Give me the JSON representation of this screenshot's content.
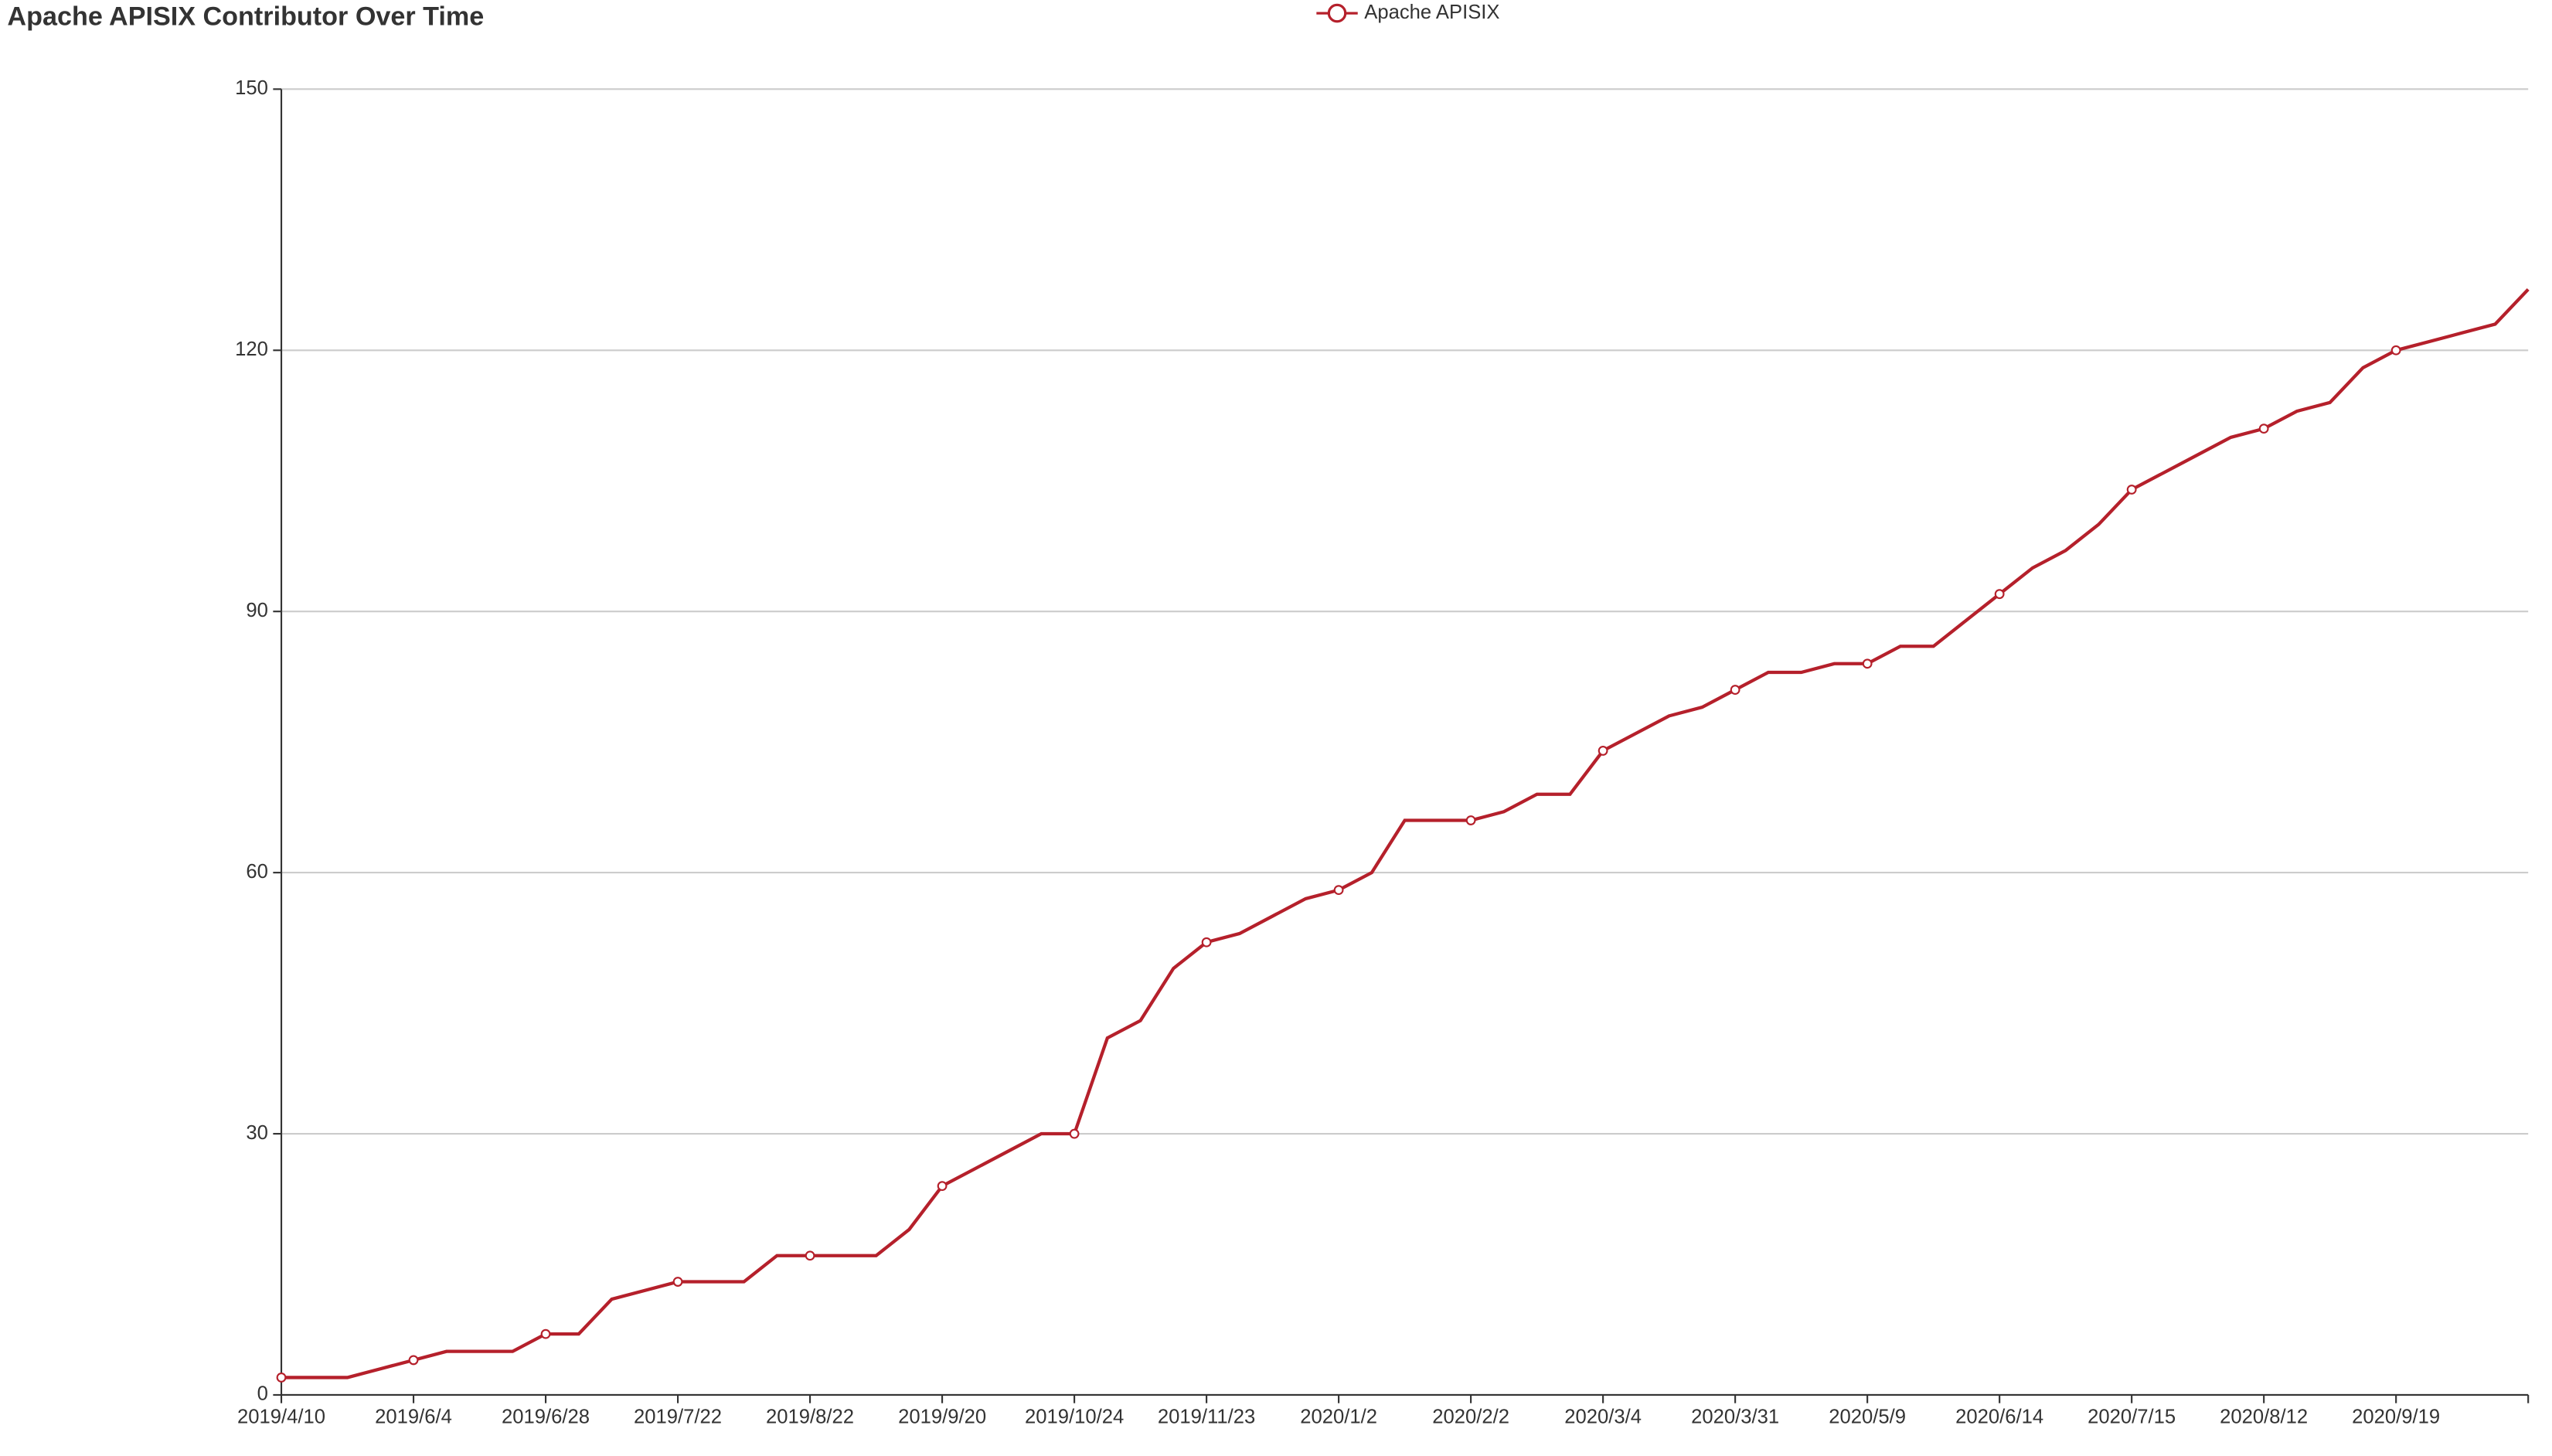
{
  "chart_data": {
    "type": "line",
    "title": "Apache APISIX Contributor Over Time",
    "categories": [
      "2019/4/10",
      null,
      null,
      null,
      "2019/6/4",
      null,
      null,
      null,
      "2019/6/28",
      null,
      null,
      null,
      "2019/7/22",
      null,
      null,
      null,
      "2019/8/22",
      null,
      null,
      null,
      "2019/9/20",
      null,
      null,
      null,
      "2019/10/24",
      null,
      null,
      null,
      "2019/11/23",
      null,
      null,
      null,
      "2020/1/2",
      null,
      null,
      null,
      "2020/2/2",
      null,
      null,
      null,
      "2020/3/4",
      null,
      null,
      null,
      "2020/3/31",
      null,
      null,
      null,
      "2020/5/9",
      null,
      null,
      null,
      "2020/6/14",
      null,
      null,
      null,
      "2020/7/15",
      null,
      null,
      null,
      "2020/8/12",
      null,
      null,
      null,
      "2020/9/19",
      null,
      null,
      null,
      null
    ],
    "series": [
      {
        "name": "Apache APISIX",
        "color": "#b5202b",
        "values": [
          2,
          2,
          2,
          3,
          4,
          5,
          5,
          5,
          7,
          7,
          11,
          12,
          13,
          13,
          13,
          16,
          16,
          16,
          16,
          19,
          24,
          26,
          28,
          30,
          30,
          41,
          43,
          49,
          52,
          53,
          55,
          57,
          58,
          60,
          66,
          66,
          66,
          67,
          69,
          69,
          74,
          76,
          78,
          79,
          81,
          83,
          83,
          84,
          84,
          86,
          86,
          89,
          92,
          95,
          97,
          100,
          104,
          106,
          108,
          110,
          111,
          113,
          114,
          118,
          120,
          121,
          122,
          123,
          127
        ]
      }
    ],
    "ylim": [
      0,
      150
    ],
    "yticks": [
      0,
      30,
      60,
      90,
      120,
      150
    ],
    "grid": true,
    "legend": "top"
  }
}
